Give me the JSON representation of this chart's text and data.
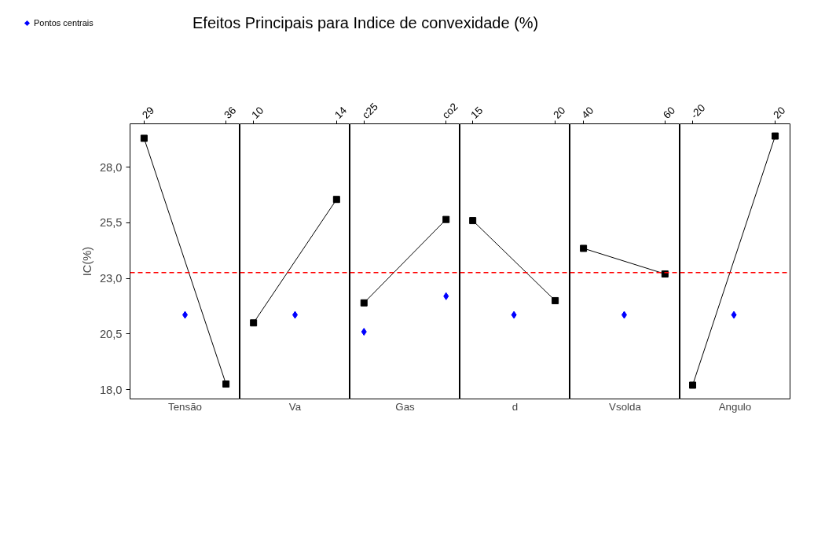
{
  "chart_data": [
    {
      "type": "line",
      "title": "Efeitos Principais para Indice de convexidade (%)",
      "xlabel": "Tensão",
      "ylabel": "IC(%)",
      "x": [
        29,
        36
      ],
      "xlim": [
        27.8,
        37.2
      ],
      "xticks": [
        29,
        36
      ],
      "ylim": [
        17.58,
        29.95
      ],
      "yticks": [
        {
          "value": 18,
          "label": "18,0"
        },
        {
          "value": 20.5,
          "label": "20,5"
        },
        {
          "value": 23,
          "label": "23,0"
        },
        {
          "value": 25.5,
          "label": "25,5"
        },
        {
          "value": 28,
          "label": "28,0"
        }
      ],
      "legend": "top left",
      "grid": false,
      "series": [
        {
          "type": "line",
          "color": "#000000",
          "marker": "square",
          "values": [
            29.3,
            18.25
          ]
        },
        {
          "type": "scatter",
          "name": "Pontos centrais",
          "color": "#0000ff",
          "marker": "diamond",
          "x": [
            32.5
          ],
          "values": [
            21.36
          ]
        }
      ],
      "ref_lines": [
        {
          "axis": "y",
          "value": 23.26,
          "color": "#ff0000",
          "line_style": "dashed"
        }
      ]
    },
    {
      "type": "line",
      "xlabel": "Va",
      "x": [
        10,
        14
      ],
      "xlim": [
        9.35,
        14.65
      ],
      "xticks": [
        10,
        14
      ],
      "ylim": [
        17.58,
        29.95
      ],
      "tick_labels": "x",
      "grid": false,
      "series": [
        {
          "type": "line",
          "color": "#000000",
          "marker": "square",
          "values": [
            21.0,
            26.55
          ]
        },
        {
          "type": "scatter",
          "color": "#0000ff",
          "marker": "diamond",
          "x": [
            12
          ],
          "values": [
            21.36
          ]
        }
      ],
      "ref_lines": [
        {
          "axis": "y",
          "value": 23.26,
          "color": "#ff0000",
          "line_style": "dashed"
        }
      ]
    },
    {
      "type": "line",
      "xlabel": "Gas",
      "categories": [
        "c25",
        "co2"
      ],
      "ylim": [
        17.58,
        29.95
      ],
      "tick_labels": "x",
      "grid": false,
      "series": [
        {
          "type": "line",
          "color": "#000000",
          "marker": "square",
          "values": [
            21.9,
            25.65
          ]
        },
        {
          "type": "scatter",
          "color": "#0000ff",
          "marker": "diamond",
          "values": [
            20.6,
            22.2
          ]
        }
      ],
      "ref_lines": [
        {
          "axis": "y",
          "value": 23.26,
          "color": "#ff0000",
          "line_style": "dashed"
        }
      ]
    },
    {
      "type": "line",
      "xlabel": "d",
      "x": [
        15,
        20
      ],
      "xlim": [
        14.23,
        20.9
      ],
      "xticks": [
        15,
        20
      ],
      "ylim": [
        17.58,
        29.95
      ],
      "tick_labels": "x",
      "grid": false,
      "series": [
        {
          "type": "line",
          "color": "#000000",
          "marker": "square",
          "values": [
            25.6,
            22.0
          ]
        },
        {
          "type": "scatter",
          "color": "#0000ff",
          "marker": "diamond",
          "x": [
            17.5
          ],
          "values": [
            21.36
          ]
        }
      ],
      "ref_lines": [
        {
          "axis": "y",
          "value": 23.26,
          "color": "#ff0000",
          "line_style": "dashed"
        }
      ]
    },
    {
      "type": "line",
      "xlabel": "Vsolda",
      "x": [
        40,
        60
      ],
      "xlim": [
        36.7,
        63.7
      ],
      "xticks": [
        40,
        60
      ],
      "ylim": [
        17.58,
        29.95
      ],
      "tick_labels": "x",
      "grid": false,
      "series": [
        {
          "type": "line",
          "color": "#000000",
          "marker": "square",
          "values": [
            24.35,
            23.2
          ]
        },
        {
          "type": "scatter",
          "color": "#0000ff",
          "marker": "diamond",
          "x": [
            50
          ],
          "values": [
            21.36
          ]
        }
      ],
      "ref_lines": [
        {
          "axis": "y",
          "value": 23.26,
          "color": "#ff0000",
          "line_style": "dashed"
        }
      ]
    },
    {
      "type": "line",
      "xlabel": "Angulo",
      "x": [
        -20,
        20
      ],
      "xlim": [
        -26.1,
        27.2
      ],
      "xticks": [
        -20,
        20
      ],
      "ylim": [
        17.58,
        29.95
      ],
      "tick_labels": "x",
      "grid": false,
      "series": [
        {
          "type": "line",
          "color": "#000000",
          "marker": "square",
          "values": [
            18.2,
            29.4
          ]
        },
        {
          "type": "scatter",
          "color": "#0000ff",
          "marker": "diamond",
          "x": [
            0
          ],
          "values": [
            21.36
          ]
        }
      ],
      "ref_lines": [
        {
          "axis": "y",
          "value": 23.26,
          "color": "#ff0000",
          "line_style": "dashed"
        }
      ]
    }
  ]
}
